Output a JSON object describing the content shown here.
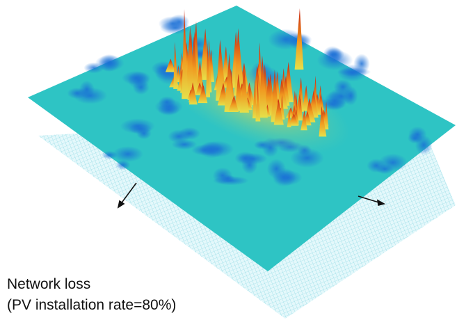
{
  "caption": {
    "line1": "Network loss",
    "line2": "(PV installation rate=80%)"
  }
}
